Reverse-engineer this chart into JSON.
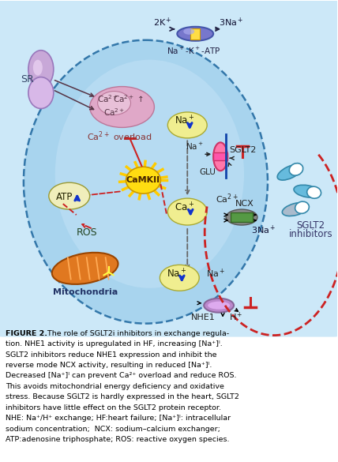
{
  "bg_color": "#ffffff",
  "fig_width": 4.28,
  "fig_height": 5.85,
  "caption_lines": [
    [
      "FIGURE 2.",
      "  The role of SGLT2i inhibitors in exchange regula-"
    ],
    [
      "",
      "tion. NHE1 activity is upregulated in HF, increasing [Na⁺]ᴵ."
    ],
    [
      "",
      "SGLT2 inhibitors reduce NHE1 expression and inhibit the"
    ],
    [
      "",
      "reverse mode NCX activity, resulting in reduced [Na⁺]ᴵ."
    ],
    [
      "",
      "Decreased [Na⁺]ᴵ can prevent Ca²⁺ overload and reduce ROS."
    ],
    [
      "",
      "This avoids mitochondrial energy deficiency and oxidative"
    ],
    [
      "",
      "stress. Because SGLT2 is hardly expressed in the heart, SGLT2"
    ],
    [
      "",
      "inhibitors have little effect on the SGLT2 protein receptor."
    ],
    [
      "",
      "NHE: Na⁺/H⁺ exchange; HF:heart failure; [Na⁺]ᴵ: intracellular"
    ],
    [
      "",
      "sodium concentration;  NCX: sodium–calcium exchanger;"
    ],
    [
      "",
      "ATP:adenosine triphosphate; ROS: reactive oxygen species."
    ]
  ]
}
